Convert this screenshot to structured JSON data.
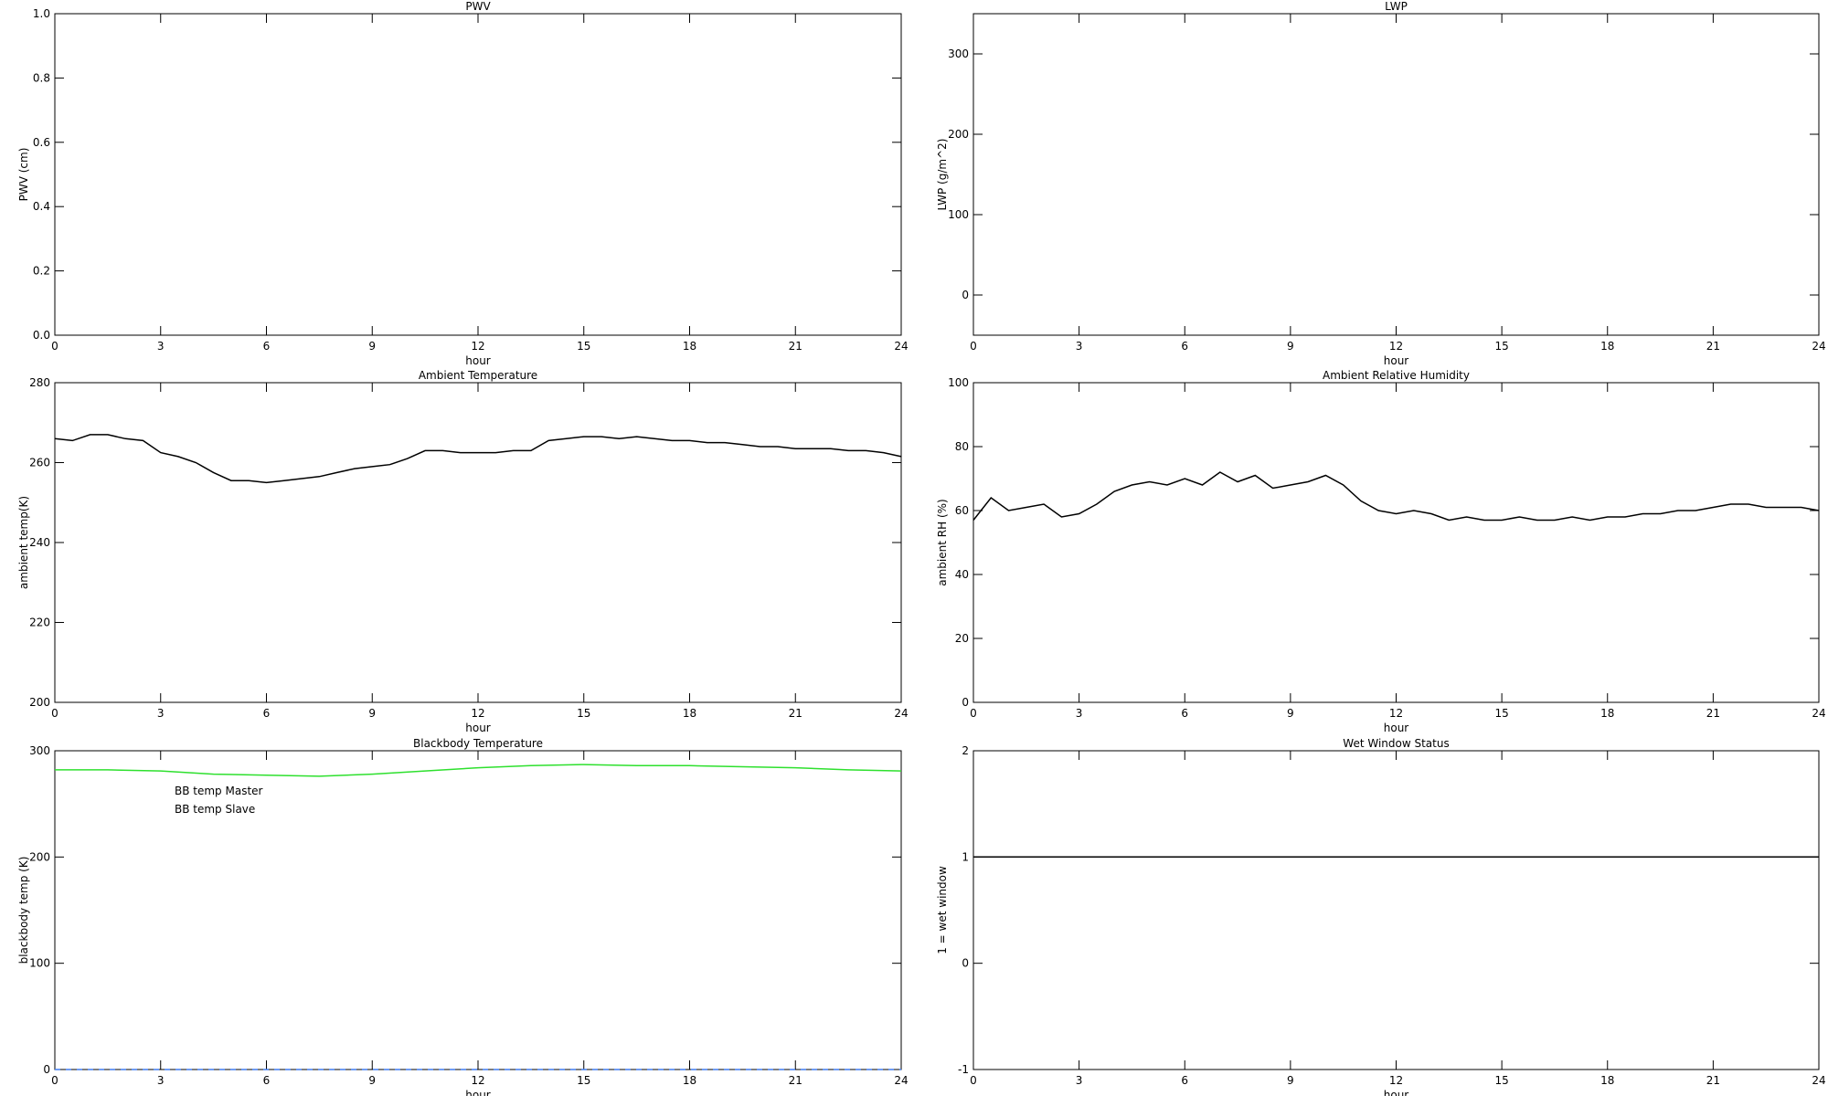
{
  "chart_data": [
    {
      "type": "line",
      "title": "PWV",
      "xlabel": "hour",
      "ylabel": "PWV (cm)",
      "xlim": [
        0,
        24
      ],
      "xticks": [
        0,
        3,
        6,
        9,
        12,
        15,
        18,
        21,
        24
      ],
      "ylim": [
        0,
        1
      ],
      "yticks": [
        {
          "value": 0,
          "label": "0.0"
        },
        0.2,
        0.4,
        0.6,
        0.8,
        {
          "value": 1,
          "label": "1.0"
        }
      ]
    },
    {
      "type": "line",
      "title": "LWP",
      "xlabel": "hour",
      "ylabel": "LWP (g/m^2)",
      "xlim": [
        0,
        24
      ],
      "xticks": [
        0,
        3,
        6,
        9,
        12,
        15,
        18,
        21,
        24
      ],
      "ylim": [
        -50,
        350
      ],
      "yticks": [
        0,
        100,
        200,
        300
      ]
    },
    {
      "type": "line",
      "title": "Ambient Temperature",
      "xlabel": "hour",
      "ylabel": "ambient temp(K)",
      "xlim": [
        0,
        24
      ],
      "xticks": [
        0,
        3,
        6,
        9,
        12,
        15,
        18,
        21,
        24
      ],
      "ylim": [
        200,
        280
      ],
      "yticks": [
        200,
        220,
        240,
        260,
        280
      ],
      "x": [
        0,
        0.5,
        1,
        1.5,
        2,
        2.5,
        3,
        3.5,
        4,
        4.5,
        5,
        5.5,
        6,
        6.5,
        7,
        7.5,
        8,
        8.5,
        9,
        9.5,
        10,
        10.5,
        11,
        11.5,
        12,
        12.5,
        13,
        13.5,
        14,
        14.5,
        15,
        15.5,
        16,
        16.5,
        17,
        17.5,
        18,
        18.5,
        19,
        19.5,
        20,
        20.5,
        21,
        21.5,
        22,
        22.5,
        23,
        23.5,
        24
      ],
      "series": [
        {
          "color": "#000000",
          "values": [
            266,
            265.5,
            267,
            267,
            266,
            265.5,
            262.5,
            261.5,
            260,
            257.5,
            255.5,
            255.5,
            255,
            255.5,
            256,
            256.5,
            257.5,
            258.5,
            259,
            259.5,
            261,
            263,
            263,
            262.5,
            262.5,
            262.5,
            263,
            263,
            265.5,
            266,
            266.5,
            266.5,
            266,
            266.5,
            266,
            265.5,
            265.5,
            265,
            265,
            264.5,
            264,
            264,
            263.5,
            263.5,
            263.5,
            263,
            263,
            262.5,
            261.5
          ]
        }
      ]
    },
    {
      "type": "line",
      "title": "Ambient Relative Humidity",
      "xlabel": "hour",
      "ylabel": "ambient RH (%)",
      "xlim": [
        0,
        24
      ],
      "xticks": [
        0,
        3,
        6,
        9,
        12,
        15,
        18,
        21,
        24
      ],
      "ylim": [
        0,
        100
      ],
      "yticks": [
        0,
        20,
        40,
        60,
        80,
        100
      ],
      "x": [
        0,
        0.5,
        1,
        1.5,
        2,
        2.5,
        3,
        3.5,
        4,
        4.5,
        5,
        5.5,
        6,
        6.5,
        7,
        7.5,
        8,
        8.5,
        9,
        9.5,
        10,
        10.5,
        11,
        11.5,
        12,
        12.5,
        13,
        13.5,
        14,
        14.5,
        15,
        15.5,
        16,
        16.5,
        17,
        17.5,
        18,
        18.5,
        19,
        19.5,
        20,
        20.5,
        21,
        21.5,
        22,
        22.5,
        23,
        23.5,
        24
      ],
      "series": [
        {
          "color": "#000000",
          "values": [
            57,
            64,
            60,
            61,
            62,
            58,
            59,
            62,
            66,
            68,
            69,
            68,
            70,
            68,
            72,
            69,
            71,
            67,
            68,
            69,
            71,
            68,
            63,
            60,
            59,
            60,
            59,
            57,
            58,
            57,
            57,
            58,
            57,
            57,
            58,
            57,
            58,
            58,
            59,
            59,
            60,
            60,
            61,
            62,
            62,
            61,
            61,
            61,
            60
          ]
        }
      ]
    },
    {
      "type": "line",
      "title": "Blackbody Temperature",
      "xlabel": "hour",
      "ylabel": "blackbody temp (K)",
      "xlim": [
        0,
        24
      ],
      "xticks": [
        0,
        3,
        6,
        9,
        12,
        15,
        18,
        21,
        24
      ],
      "ylim": [
        0,
        300
      ],
      "yticks": [
        0,
        100,
        200,
        300
      ],
      "x": [
        0,
        1.5,
        3,
        4.5,
        6,
        7.5,
        9,
        10.5,
        12,
        13.5,
        15,
        16.5,
        18,
        19.5,
        21,
        22.5,
        24
      ],
      "series": [
        {
          "name": "BB temp Master",
          "color": "#3f7cf2",
          "values": [
            0,
            0,
            0,
            0,
            0,
            0,
            0,
            0,
            0,
            0,
            0,
            0,
            0,
            0,
            0,
            0,
            0
          ]
        },
        {
          "name": "BB temp Slave",
          "color": "#2ee02e",
          "values": [
            282,
            282,
            281,
            278,
            277,
            276,
            278,
            281,
            284,
            286,
            287,
            286,
            286,
            285,
            284,
            282,
            281
          ]
        }
      ]
    },
    {
      "type": "line",
      "title": "Wet Window Status",
      "xlabel": "hour",
      "ylabel": "1 = wet window",
      "xlim": [
        0,
        24
      ],
      "xticks": [
        0,
        3,
        6,
        9,
        12,
        15,
        18,
        21,
        24
      ],
      "ylim": [
        -1,
        2
      ],
      "yticks": [
        -1,
        0,
        1,
        2
      ],
      "x": [
        0,
        24
      ],
      "series": [
        {
          "color": "#000000",
          "values": [
            1,
            1
          ]
        }
      ]
    }
  ]
}
